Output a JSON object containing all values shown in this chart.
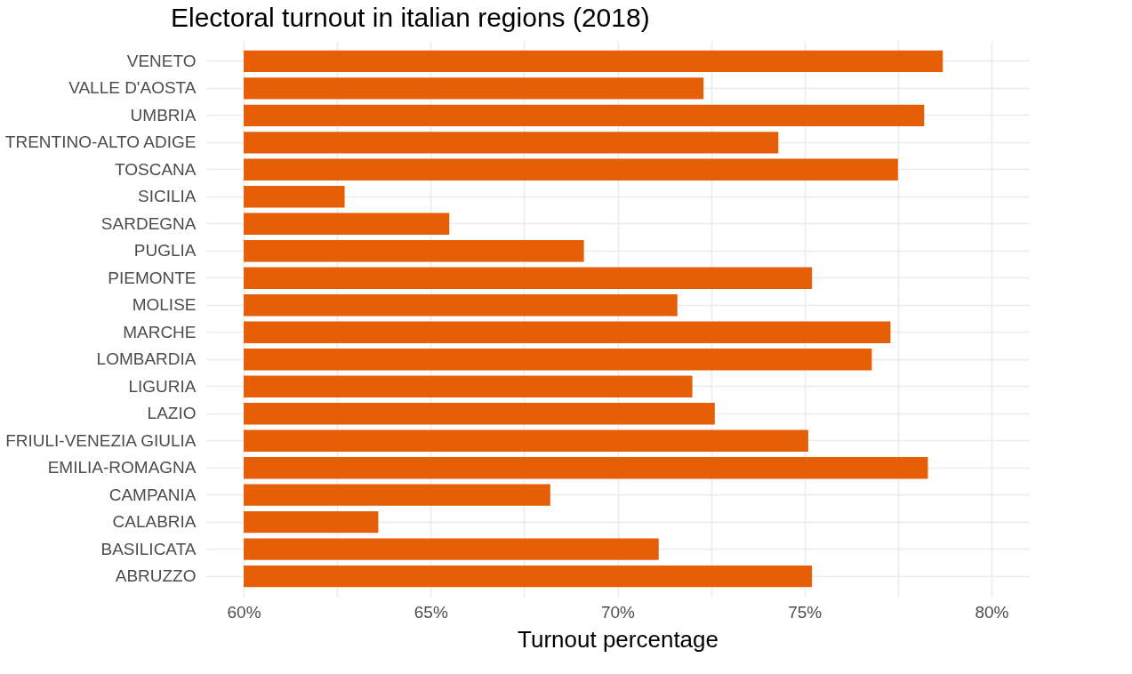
{
  "chart_data": {
    "type": "bar",
    "orientation": "horizontal",
    "title": "Electoral turnout in italian regions (2018)",
    "xlabel": "Turnout percentage",
    "categories": [
      "VENETO",
      "VALLE D'AOSTA",
      "UMBRIA",
      "TRENTINO-ALTO ADIGE",
      "TOSCANA",
      "SICILIA",
      "SARDEGNA",
      "PUGLIA",
      "PIEMONTE",
      "MOLISE",
      "MARCHE",
      "LOMBARDIA",
      "LIGURIA",
      "LAZIO",
      "FRIULI-VENEZIA GIULIA",
      "EMILIA-ROMAGNA",
      "CAMPANIA",
      "CALABRIA",
      "BASILICATA",
      "ABRUZZO"
    ],
    "base": [
      60,
      60,
      60,
      60,
      60,
      60,
      60,
      60,
      60,
      60,
      60,
      60,
      60,
      60,
      60,
      60,
      60,
      60,
      60,
      60
    ],
    "values": [
      18.7,
      12.3,
      18.2,
      14.3,
      17.5,
      2.7,
      5.5,
      9.1,
      15.2,
      11.6,
      17.3,
      16.8,
      12.0,
      12.6,
      15.1,
      18.3,
      8.2,
      3.6,
      11.1,
      15.2
    ],
    "color": "#e65f06",
    "xlim": [
      59,
      81
    ],
    "xticks": [
      {
        "value": 60,
        "label": "60%"
      },
      {
        "value": 62.5,
        "label": null
      },
      {
        "value": 65,
        "label": "65%"
      },
      {
        "value": 67.5,
        "label": null
      },
      {
        "value": 70,
        "label": "70%"
      },
      {
        "value": 72.5,
        "label": null
      },
      {
        "value": 75,
        "label": "75%"
      },
      {
        "value": 77.5,
        "label": null
      },
      {
        "value": 80,
        "label": "80%"
      }
    ],
    "grid": true
  }
}
